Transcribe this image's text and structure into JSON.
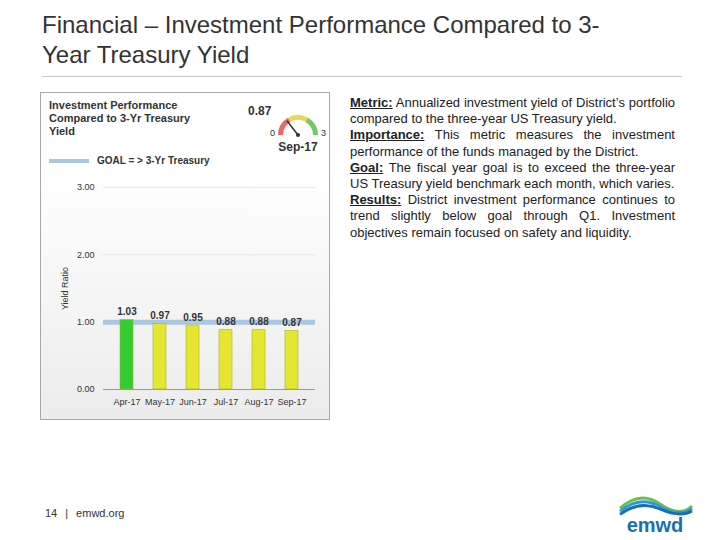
{
  "slide": {
    "title": "Financial – Investment Performance Compared to 3-Year Treasury Yield",
    "page": "14",
    "separator": "|",
    "website": "emwd.org",
    "logo": "emwd",
    "notes": [
      {
        "label": "Metric:",
        "text": "Annualized investment yield of District’s portfolio compared to the three-year US Treasury yield."
      },
      {
        "label": "Importance:",
        "text": "This metric measures the investment performance of the funds managed by the District."
      },
      {
        "label": "Goal:",
        "text": "The fiscal year goal is to exceed the three-year US Treasury yield benchmark each month, which varies."
      },
      {
        "label": "Results:",
        "text": "District investment performance continues to trend slightly below goal through Q1. Investment objectives remain focused on safety and liquidity."
      }
    ]
  },
  "gauge": {
    "value": 0.87,
    "min": 0,
    "max": 3,
    "label": "Sep-17"
  },
  "chart_data": {
    "type": "bar",
    "title": "Investment Performance Compared to 3-Yr Treasury Yield",
    "categories": [
      "Apr-17",
      "May-17",
      "Jun-17",
      "Jul-17",
      "Aug-17",
      "Sep-17"
    ],
    "values": [
      1.03,
      0.97,
      0.95,
      0.88,
      0.88,
      0.87
    ],
    "colors": [
      "#33cc33",
      "#e6e632",
      "#e6e632",
      "#e6e632",
      "#e6e632",
      "#e6e632"
    ],
    "ylabel": "Yield Ratio",
    "ylim": [
      0,
      3
    ],
    "yticks": [
      {
        "value": 0,
        "label": "0.00"
      },
      {
        "value": 1,
        "label": "1.00"
      },
      {
        "value": 2,
        "label": "2.00"
      },
      {
        "value": 3,
        "label": "3.00"
      }
    ],
    "grid": true,
    "data_labels": true,
    "goal": {
      "name": "GOAL = > 3-Yr Treasury",
      "value": 1,
      "color": "#a9c6e2"
    }
  }
}
